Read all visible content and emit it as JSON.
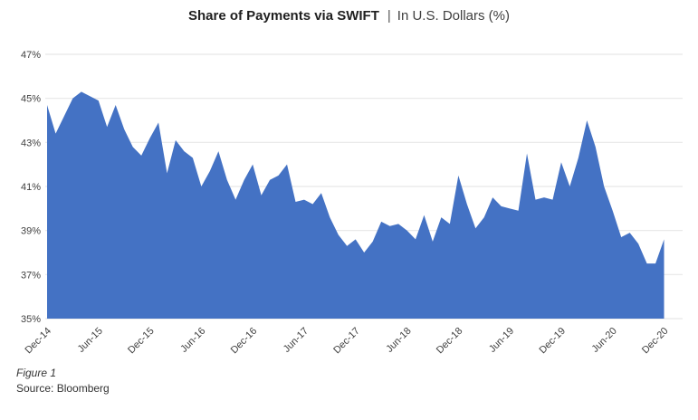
{
  "header": {
    "title": "Share of Payments via SWIFT",
    "separator": "|",
    "subtitle": "In U.S. Dollars (%)"
  },
  "footer": {
    "figure_label": "Figure 1",
    "source": "Source: Bloomberg"
  },
  "colors": {
    "area_fill": "#4472C4",
    "gridline": "#E7E7E7",
    "axis_label": "#404040",
    "title": "#1F1F1F",
    "subtitle": "#404040"
  },
  "chart_data": {
    "type": "area",
    "title": "Share of Payments via SWIFT | In U.S. Dollars (%)",
    "series_name": "Share of payments via SWIFT in U.S. dollars (%)",
    "categories": [
      "Dec-14",
      "Jan-15",
      "Feb-15",
      "Mar-15",
      "Apr-15",
      "May-15",
      "Jun-15",
      "Jul-15",
      "Aug-15",
      "Sep-15",
      "Oct-15",
      "Nov-15",
      "Dec-15",
      "Jan-16",
      "Feb-16",
      "Mar-16",
      "Apr-16",
      "May-16",
      "Jun-16",
      "Jul-16",
      "Aug-16",
      "Sep-16",
      "Oct-16",
      "Nov-16",
      "Dec-16",
      "Jan-17",
      "Feb-17",
      "Mar-17",
      "Apr-17",
      "May-17",
      "Jun-17",
      "Jul-17",
      "Aug-17",
      "Sep-17",
      "Oct-17",
      "Nov-17",
      "Dec-17",
      "Jan-18",
      "Feb-18",
      "Mar-18",
      "Apr-18",
      "May-18",
      "Jun-18",
      "Jul-18",
      "Aug-18",
      "Sep-18",
      "Oct-18",
      "Nov-18",
      "Dec-18",
      "Jan-19",
      "Feb-19",
      "Mar-19",
      "Apr-19",
      "May-19",
      "Jun-19",
      "Jul-19",
      "Aug-19",
      "Sep-19",
      "Oct-19",
      "Nov-19",
      "Dec-19",
      "Jan-20",
      "Feb-20",
      "Mar-20",
      "Apr-20",
      "May-20",
      "Jun-20",
      "Jul-20",
      "Aug-20",
      "Sep-20",
      "Oct-20",
      "Nov-20",
      "Dec-20"
    ],
    "values": [
      44.7,
      43.4,
      44.2,
      45.0,
      45.3,
      45.1,
      44.9,
      43.7,
      44.7,
      43.6,
      42.8,
      42.4,
      43.2,
      43.9,
      41.6,
      43.1,
      42.6,
      42.3,
      41.0,
      41.7,
      42.6,
      41.3,
      40.4,
      41.3,
      42.0,
      40.6,
      41.3,
      41.5,
      42.0,
      40.3,
      40.4,
      40.2,
      40.7,
      39.6,
      38.8,
      38.3,
      38.6,
      38.0,
      38.5,
      39.4,
      39.2,
      39.3,
      39.0,
      38.6,
      39.7,
      38.5,
      39.6,
      39.3,
      41.5,
      40.2,
      39.1,
      39.6,
      40.5,
      40.1,
      40.0,
      39.9,
      42.5,
      40.4,
      40.5,
      40.4,
      42.1,
      41.0,
      42.3,
      44.0,
      42.8,
      41.0,
      39.9,
      38.7,
      38.9,
      38.4,
      37.5,
      37.5,
      38.6
    ],
    "ylim": [
      35,
      47
    ],
    "ytick_step": 2,
    "ytick_labels": [
      "47%",
      "45%",
      "43%",
      "41%",
      "39%",
      "37%",
      "35%"
    ],
    "xtick_labels": [
      "Dec-14",
      "Jun-15",
      "Dec-15",
      "Jun-16",
      "Dec-16",
      "Jun-17",
      "Dec-17",
      "Jun-18",
      "Dec-18",
      "Jun-19",
      "Dec-19",
      "Jun-20",
      "Dec-20"
    ],
    "xtick_every": 6,
    "xlabel": "",
    "ylabel": "",
    "grid": "horizontal",
    "legend": "none"
  }
}
